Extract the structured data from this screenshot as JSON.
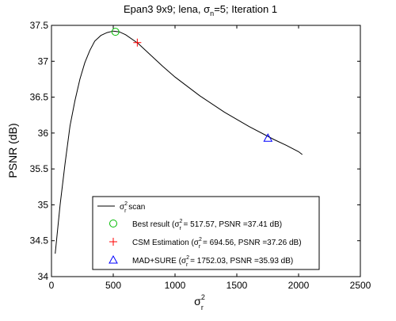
{
  "chart_data": {
    "type": "line",
    "title": {
      "pre": "Epan3 9x9; lena, ",
      "sym": "σ",
      "sub": "n",
      "post": "=5; Iteration 1"
    },
    "xlabel": {
      "sym": "σ",
      "sup": "2",
      "sub": "r"
    },
    "ylabel": "PSNR (dB)",
    "xlim": [
      0,
      2500
    ],
    "ylim": [
      34,
      37.5
    ],
    "grid": false,
    "x_ticks": [
      "0",
      "500",
      "1000",
      "1500",
      "2000",
      "2500"
    ],
    "y_ticks": [
      "34",
      "34.5",
      "35",
      "35.5",
      "36",
      "36.5",
      "37",
      "37.5"
    ],
    "series": [
      {
        "marker": "line",
        "color": "#000000",
        "x": [
          30,
          70,
          110,
          150,
          190,
          230,
          270,
          310,
          350,
          400,
          450,
          500,
          550,
          600,
          700,
          800,
          900,
          1000,
          1200,
          1400,
          1600,
          1800,
          1900,
          2000,
          2030
        ],
        "y": [
          34.32,
          35.0,
          35.58,
          36.1,
          36.45,
          36.75,
          36.98,
          37.15,
          37.28,
          37.36,
          37.4,
          37.42,
          37.41,
          37.37,
          37.25,
          37.09,
          36.93,
          36.78,
          36.52,
          36.29,
          36.09,
          35.91,
          35.83,
          35.74,
          35.7
        ]
      },
      {
        "marker": "circle",
        "color": "#00bb00",
        "x": [
          517.57
        ],
        "y": [
          37.41
        ]
      },
      {
        "marker": "plus",
        "color": "#ff0000",
        "x": [
          694.56
        ],
        "y": [
          37.26
        ]
      },
      {
        "marker": "triangle",
        "color": "#0000ff",
        "x": [
          1752.03
        ],
        "y": [
          35.93
        ]
      }
    ],
    "legend": {
      "placement": "bottom-center",
      "entries": [
        {
          "marker": "line",
          "color": "#000000",
          "sym": "σ",
          "sup": "2",
          "sub": "r",
          "post": " scan"
        },
        {
          "marker": "circle",
          "color": "#00bb00",
          "pre": "Best result  (",
          "sym": "σ",
          "sup": "2",
          "sub": "r",
          "post": " = 517.57, PSNR =37.41 dB)"
        },
        {
          "marker": "plus",
          "color": "#ff0000",
          "pre": "CSM Estimation (",
          "sym": "σ",
          "sup": "2",
          "sub": "r",
          "post": " = 694.56, PSNR =37.26 dB)"
        },
        {
          "marker": "triangle",
          "color": "#0000ff",
          "pre": "MAD+SURE (",
          "sym": "σ",
          "sup": "2",
          "sub": "r",
          "post": " = 1752.03, PSNR =35.93 dB)"
        }
      ]
    }
  }
}
